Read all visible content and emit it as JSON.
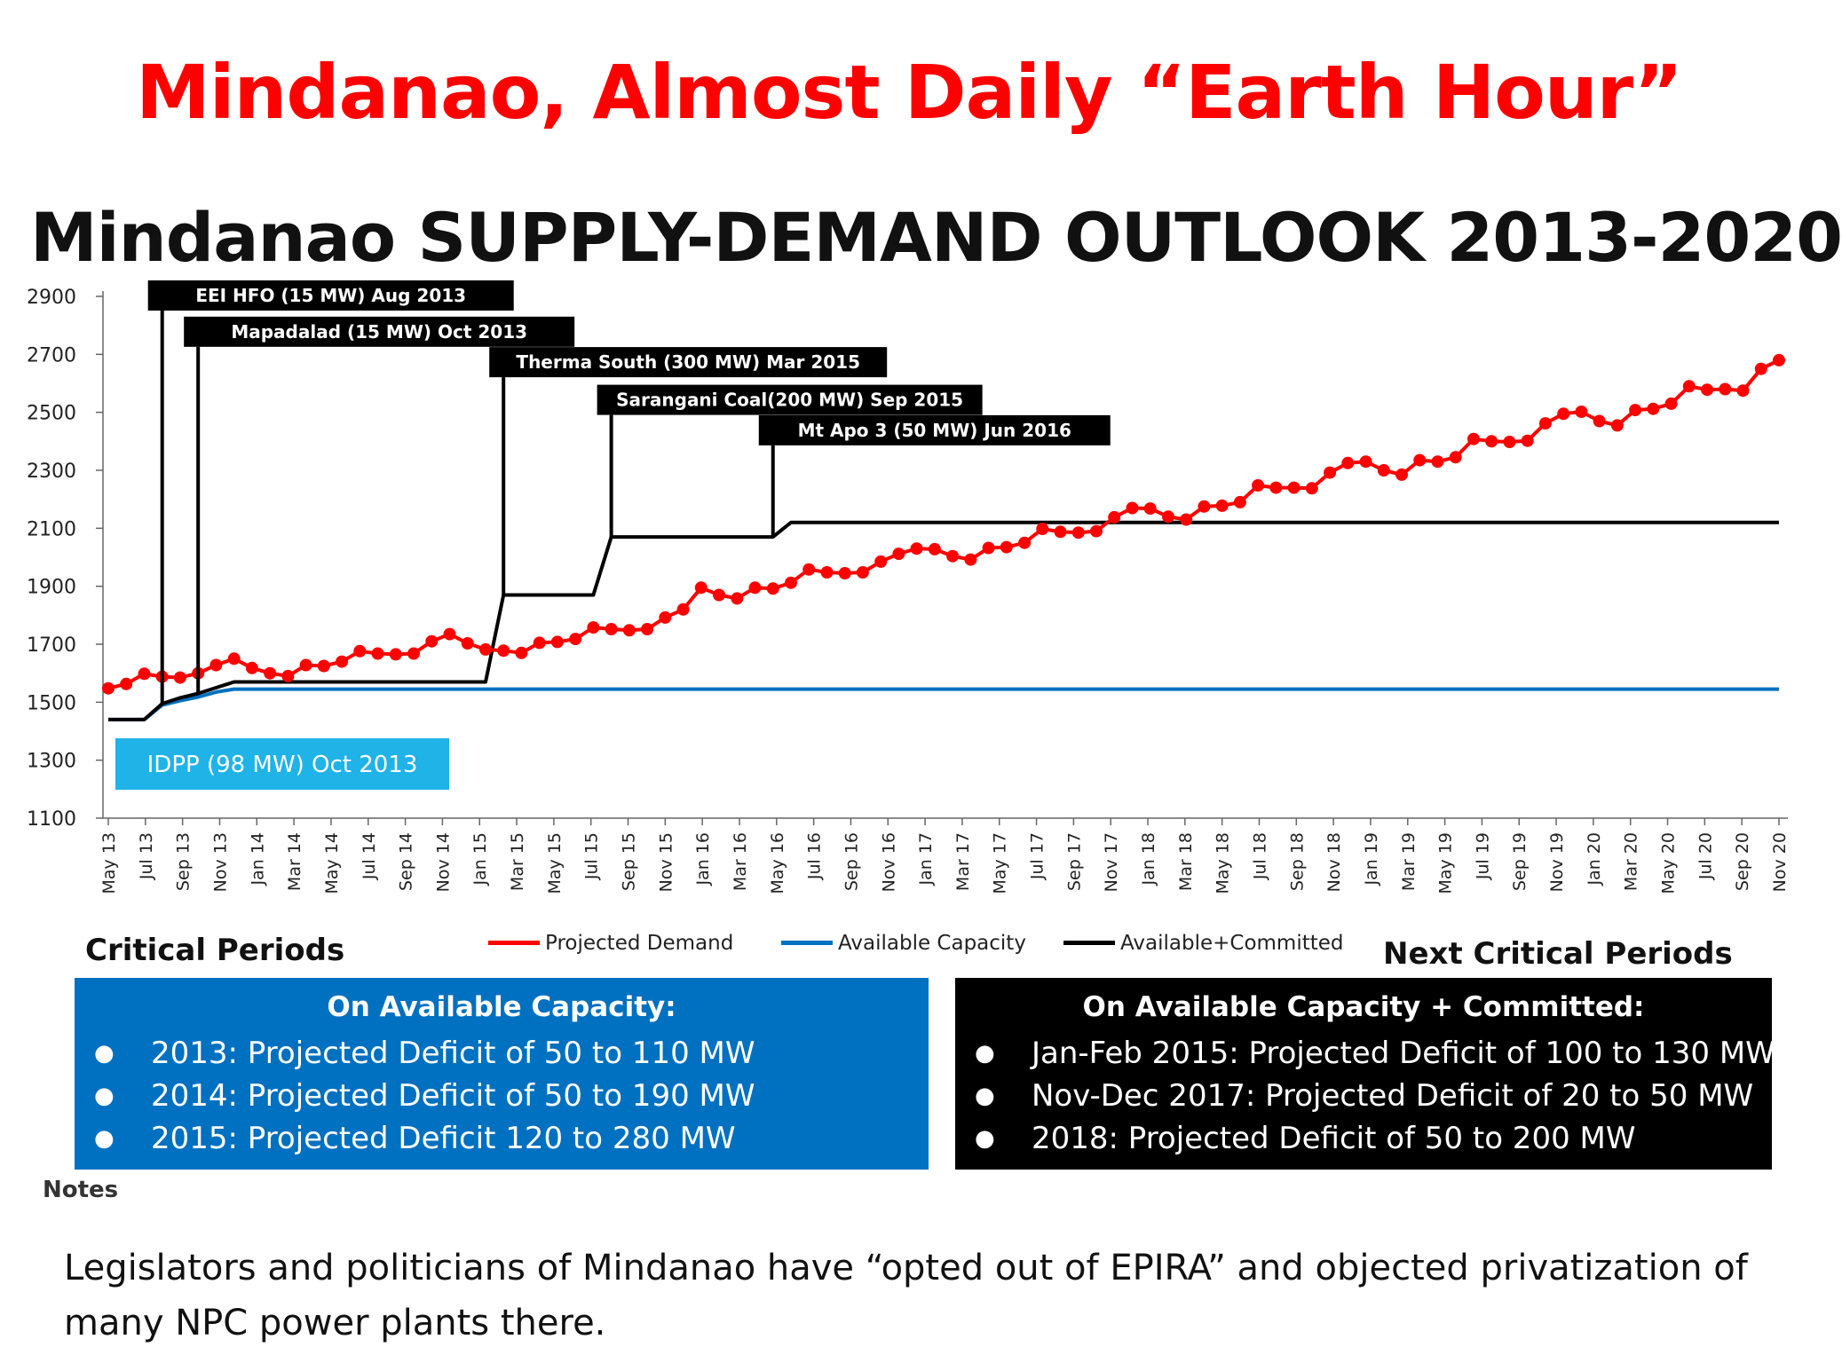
{
  "slide": {
    "title": "Mindanao, Almost Daily “Earth Hour”",
    "notes_label": "Notes",
    "body_text": "Legislators and politicians of Mindanao have “opted out of EPIRA” and objected privatization of many NPC power plants there."
  },
  "chart_data": {
    "type": "line",
    "title": "Mindanao SUPPLY-DEMAND OUTLOOK 2013-2020",
    "xlabel": "",
    "ylabel": "",
    "ylim": [
      1100,
      2900
    ],
    "yticks": [
      1100,
      1300,
      1500,
      1700,
      1900,
      2100,
      2300,
      2500,
      2700,
      2900
    ],
    "grid": false,
    "legend_position": "bottom",
    "x_tick_labels": [
      "May 13",
      "Jul 13",
      "Sep 13",
      "Nov 13",
      "Jan 14",
      "Mar 14",
      "May 14",
      "Jul 14",
      "Sep 14",
      "Nov 14",
      "Jan 15",
      "Mar 15",
      "May 15",
      "Jul 15",
      "Sep 15",
      "Nov 15",
      "Jan 16",
      "Mar 16",
      "May 16",
      "Jul 16",
      "Sep 16",
      "Nov 16",
      "Jan 17",
      "Mar 17",
      "May 17",
      "Jul 17",
      "Sep 17",
      "Nov 17",
      "Jan 18",
      "Mar 18",
      "May 18",
      "Jul 18",
      "Sep 18",
      "Nov 18",
      "Jan 19",
      "Mar 19",
      "May 19",
      "Jul 19",
      "Sep 19",
      "Nov 19",
      "Jan 20",
      "Mar 20",
      "May 20",
      "Jul 20",
      "Sep 20",
      "Nov 20"
    ],
    "x_start": "May 13",
    "series": [
      {
        "name": "Projected Demand",
        "color": "#ff0000",
        "marker": "circle",
        "values": [
          1548,
          1563,
          1598,
          1588,
          1585,
          1600,
          1628,
          1650,
          1618,
          1600,
          1590,
          1628,
          1625,
          1640,
          1676,
          1668,
          1665,
          1668,
          1710,
          1735,
          1703,
          1682,
          1678,
          1670,
          1705,
          1708,
          1718,
          1758,
          1752,
          1748,
          1752,
          1792,
          1820,
          1895,
          1870,
          1858,
          1895,
          1892,
          1912,
          1958,
          1948,
          1945,
          1948,
          1985,
          2012,
          2030,
          2028,
          2004,
          1992,
          2032,
          2035,
          2050,
          2098,
          2088,
          2085,
          2090,
          2138,
          2170,
          2168,
          2140,
          2130,
          2175,
          2178,
          2190,
          2248,
          2240,
          2240,
          2238,
          2292,
          2325,
          2330,
          2300,
          2285,
          2335,
          2330,
          2345,
          2408,
          2400,
          2398,
          2402,
          2462,
          2495,
          2502,
          2470,
          2455,
          2508,
          2512,
          2530,
          2590,
          2578,
          2580,
          2575,
          2650,
          2680
        ]
      },
      {
        "name": "Available Capacity",
        "color": "#0070c0",
        "values": [
          1440,
          1440,
          1440,
          1490,
          1505,
          1518,
          1535,
          1545,
          1545,
          1545,
          1545,
          1545,
          1545,
          1545,
          1545,
          1545,
          1545,
          1545,
          1545,
          1545,
          1545,
          1545,
          1545,
          1545,
          1545,
          1545,
          1545,
          1545,
          1545,
          1545,
          1545,
          1545,
          1545,
          1545,
          1545,
          1545,
          1545,
          1545,
          1545,
          1545,
          1545,
          1545,
          1545,
          1545,
          1545,
          1545,
          1545,
          1545,
          1545,
          1545,
          1545,
          1545,
          1545,
          1545,
          1545,
          1545,
          1545,
          1545,
          1545,
          1545,
          1545,
          1545,
          1545,
          1545,
          1545,
          1545,
          1545,
          1545,
          1545,
          1545,
          1545,
          1545,
          1545,
          1545,
          1545,
          1545,
          1545,
          1545,
          1545,
          1545,
          1545,
          1545,
          1545,
          1545,
          1545,
          1545,
          1545,
          1545,
          1545,
          1545,
          1545,
          1545,
          1545,
          1545
        ]
      },
      {
        "name": "Available+Committed",
        "color": "#000000",
        "values": [
          1440,
          1440,
          1440,
          1495,
          1515,
          1530,
          1550,
          1570,
          1570,
          1570,
          1570,
          1570,
          1570,
          1570,
          1570,
          1570,
          1570,
          1570,
          1570,
          1570,
          1570,
          1570,
          1870,
          1870,
          1870,
          1870,
          1870,
          1870,
          2070,
          2070,
          2070,
          2070,
          2070,
          2070,
          2070,
          2070,
          2070,
          2070,
          2120,
          2120,
          2120,
          2120,
          2120,
          2120,
          2120,
          2120,
          2120,
          2120,
          2120,
          2120,
          2120,
          2120,
          2120,
          2120,
          2120,
          2120,
          2120,
          2120,
          2120,
          2120,
          2120,
          2120,
          2120,
          2120,
          2120,
          2120,
          2120,
          2120,
          2120,
          2120,
          2120,
          2120,
          2120,
          2120,
          2120,
          2120,
          2120,
          2120,
          2120,
          2120,
          2120,
          2120,
          2120,
          2120,
          2120,
          2120,
          2120,
          2120,
          2120,
          2120,
          2120,
          2120,
          2120,
          2120
        ]
      }
    ],
    "annotations": [
      {
        "text": "EEI HFO (15 MW) Aug 2013",
        "x_index": 3,
        "y": 2900,
        "color": "#000000"
      },
      {
        "text": "Mapadalad (15  MW) Oct 2013",
        "x_index": 5,
        "y": 2775,
        "color": "#000000"
      },
      {
        "text": "Therma South (300 MW) Mar 2015",
        "x_index": 22,
        "y": 2670,
        "color": "#000000"
      },
      {
        "text": "Sarangani Coal(200 MW) Sep 2015",
        "x_index": 28,
        "y": 2540,
        "color": "#000000"
      },
      {
        "text": "Mt Apo 3 (50 MW) Jun 2016",
        "x_index": 37,
        "y": 2435,
        "color": "#000000"
      },
      {
        "text": "IDPP (98 MW) Oct 2013",
        "color": "#1fb3e8"
      }
    ]
  },
  "sections": {
    "critical_periods_label": "Critical Periods",
    "next_critical_periods_label": "Next Critical Periods"
  },
  "boxes": [
    {
      "heading": "On Available Capacity:",
      "bg_color": "#0070c0",
      "items": [
        "2013: Projected Deficit of 50 to 110 MW",
        "2014: Projected Deficit of 50 to 190 MW",
        "2015: Projected Deficit 120 to 280 MW"
      ]
    },
    {
      "heading": "On Available Capacity + Committed:",
      "bg_color": "#000000",
      "items": [
        "Jan-Feb 2015: Projected Deficit of 100 to 130 MW",
        "Nov-Dec 2017: Projected Deficit of 20 to 50  MW",
        "2018: Projected Deficit of 50 to 200 MW"
      ]
    }
  ]
}
